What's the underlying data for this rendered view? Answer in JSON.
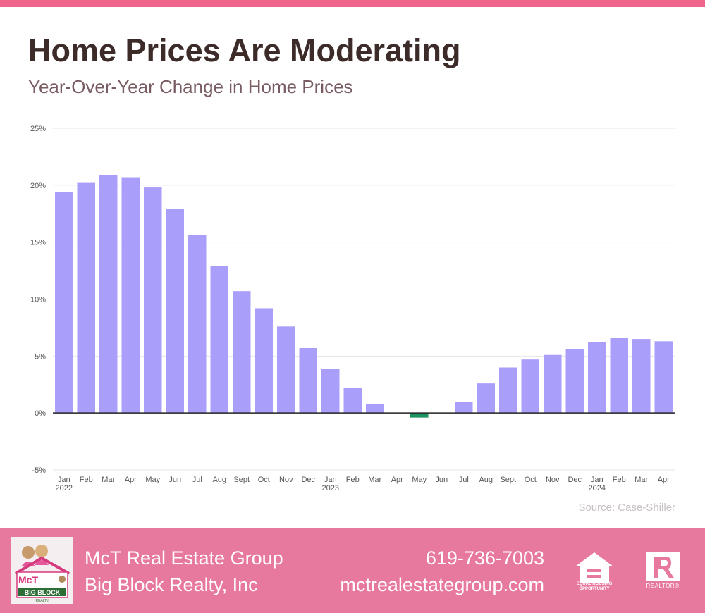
{
  "header": {
    "title": "Home Prices Are Moderating",
    "subtitle": "Year-Over-Year Change in Home Prices"
  },
  "source": "Source: Case-Shiller",
  "footer": {
    "company_line1": "McT Real Estate Group",
    "company_line2": "Big Block Realty, Inc",
    "phone": "619-736-7003",
    "website": "mctrealestategroup.com",
    "logo_text": [
      "McT",
      "BIG BLOCK",
      "REALTY"
    ],
    "equal_housing_text": [
      "EQUAL HOUSING",
      "OPPORTUNITY"
    ],
    "realtor_text": "REALTOR®"
  },
  "colors": {
    "accent": "#f0638a",
    "footer": "#e7799f",
    "bar_positive": "#a99ffb",
    "bar_negative": "#1a9360",
    "title": "#3d2b29",
    "subtitle": "#7a5c63"
  },
  "icons": [
    "logo-icon",
    "equal-housing-icon",
    "realtor-icon"
  ],
  "chart_data": {
    "type": "bar",
    "categories": [
      "Jan",
      "Feb",
      "Mar",
      "Apr",
      "May",
      "Jun",
      "Jul",
      "Aug",
      "Sept",
      "Oct",
      "Nov",
      "Dec",
      "Jan",
      "Feb",
      "Mar",
      "Apr",
      "May",
      "Jun",
      "Jul",
      "Aug",
      "Sept",
      "Oct",
      "Nov",
      "Dec",
      "Jan",
      "Feb",
      "Mar",
      "Apr"
    ],
    "year_labels": [
      "2022",
      "",
      "",
      "",
      "",
      "",
      "",
      "",
      "",
      "",
      "",
      "",
      "2023",
      "",
      "",
      "",
      "",
      "",
      "",
      "",
      "",
      "",
      "",
      "",
      "2024",
      "",
      "",
      ""
    ],
    "values": [
      19.4,
      20.2,
      20.9,
      20.7,
      19.8,
      17.9,
      15.6,
      12.9,
      10.7,
      9.2,
      7.6,
      5.7,
      3.9,
      2.2,
      0.8,
      0.0,
      -0.4,
      0.0,
      1.0,
      2.6,
      4.0,
      4.7,
      5.1,
      5.6,
      6.2,
      6.6,
      6.5,
      6.3
    ],
    "yticks": [
      -5,
      0,
      5,
      10,
      15,
      20,
      25
    ],
    "ytick_labels": [
      "-5%",
      "0%",
      "5%",
      "10%",
      "15%",
      "20%",
      "25%"
    ],
    "ylim": [
      -5,
      25
    ],
    "xlabel": "",
    "ylabel": "",
    "grid": true
  }
}
